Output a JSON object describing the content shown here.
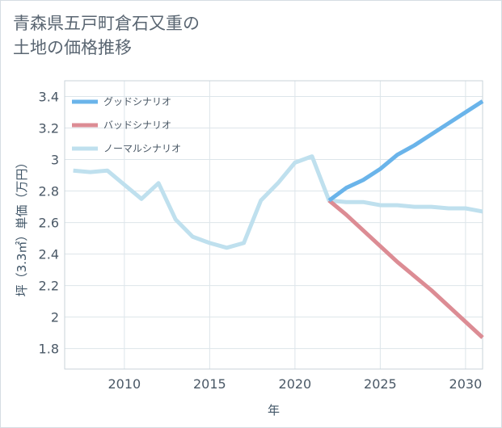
{
  "title_line1": "青森県五戸町倉石又重の",
  "title_line2": "土地の価格推移",
  "chart_data": {
    "type": "line",
    "title": "青森県五戸町倉石又重の土地の価格推移",
    "xlabel": "年",
    "ylabel": "坪（3.3㎡）単価（万円）",
    "xlim": [
      2006.5,
      2031
    ],
    "ylim": [
      1.67,
      3.5
    ],
    "x_ticks": [
      2010,
      2015,
      2020,
      2025,
      2030
    ],
    "y_ticks": [
      1.8,
      2,
      2.2,
      2.4,
      2.6,
      2.8,
      3,
      3.2,
      3.4
    ],
    "y_tick_labels": [
      "1.8",
      "2",
      "2.2",
      "2.4",
      "2.6",
      "2.8",
      "3",
      "3.2",
      "3.4"
    ],
    "grid": true,
    "legend_position": "top-left",
    "series": [
      {
        "name": "グッドシナリオ",
        "color": "#6ab4ea",
        "x": [
          2022,
          2023,
          2024,
          2025,
          2026,
          2027,
          2028,
          2029,
          2030,
          2031
        ],
        "values": [
          2.74,
          2.82,
          2.87,
          2.94,
          3.03,
          3.09,
          3.16,
          3.23,
          3.3,
          3.37
        ]
      },
      {
        "name": "バッドシナリオ",
        "color": "#dc8c94",
        "x": [
          2022,
          2023,
          2024,
          2025,
          2026,
          2027,
          2028,
          2029,
          2030,
          2031
        ],
        "values": [
          2.74,
          2.65,
          2.55,
          2.45,
          2.35,
          2.26,
          2.17,
          2.07,
          1.97,
          1.87
        ]
      },
      {
        "name": "ノーマルシナリオ",
        "color": "#bfe0ee",
        "x": [
          2007,
          2008,
          2009,
          2010,
          2011,
          2012,
          2013,
          2014,
          2015,
          2016,
          2017,
          2018,
          2019,
          2020,
          2021,
          2022,
          2023,
          2024,
          2025,
          2026,
          2027,
          2028,
          2029,
          2030,
          2031
        ],
        "values": [
          2.93,
          2.92,
          2.93,
          2.84,
          2.75,
          2.85,
          2.62,
          2.51,
          2.47,
          2.44,
          2.47,
          2.74,
          2.85,
          2.98,
          3.02,
          2.74,
          2.73,
          2.73,
          2.71,
          2.71,
          2.7,
          2.7,
          2.69,
          2.69,
          2.67
        ]
      }
    ]
  }
}
